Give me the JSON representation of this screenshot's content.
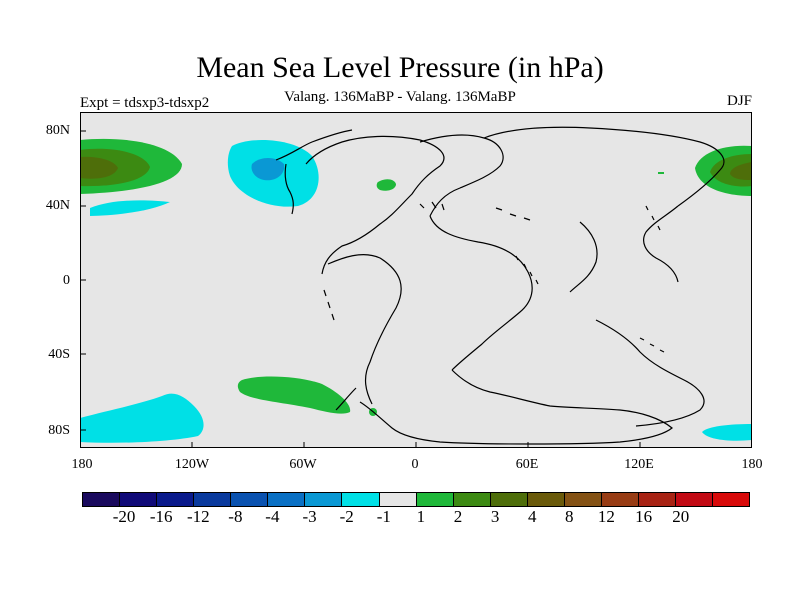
{
  "header": {
    "title": "Mean Sea Level Pressure (in hPa)",
    "subtitle": "Valang. 136MaBP - Valang. 136MaBP",
    "left_label": "Expt = tdsxp3-tdsxp2",
    "right_label": "DJF"
  },
  "axes": {
    "y_ticks": [
      "80N",
      "40N",
      "0",
      "40S",
      "80S"
    ],
    "x_ticks": [
      "180",
      "120W",
      "60W",
      "0",
      "60E",
      "120E",
      "180"
    ]
  },
  "colors": {
    "ocean_background": "#e6e6e6",
    "coastline": "#000000"
  },
  "colorbar": {
    "colors": [
      "#1a0a5e",
      "#100a78",
      "#0a1a8c",
      "#0a3a9e",
      "#0a52b0",
      "#0a70c4",
      "#0a98d4",
      "#00e0e6",
      "#e6e6e6",
      "#1fb83a",
      "#3c8a12",
      "#4e6e0a",
      "#6a5a0a",
      "#845214",
      "#983c14",
      "#a82314",
      "#c20a14",
      "#d80a0a"
    ],
    "labels": [
      "-20",
      "-16",
      "-12",
      "-8",
      "-4",
      "-3",
      "-2",
      "-1",
      "1",
      "2",
      "3",
      "4",
      "8",
      "12",
      "16",
      "20"
    ]
  },
  "fields": {
    "anomaly_regions": [
      {
        "region": "North Pacific west",
        "level": "4"
      },
      {
        "region": "North Pacific east",
        "level": "-2"
      },
      {
        "region": "North Atlantic / Eurasia",
        "level": "4"
      },
      {
        "region": "South Pacific",
        "level": "-1"
      },
      {
        "region": "South Atlantic",
        "level": "2"
      }
    ]
  }
}
